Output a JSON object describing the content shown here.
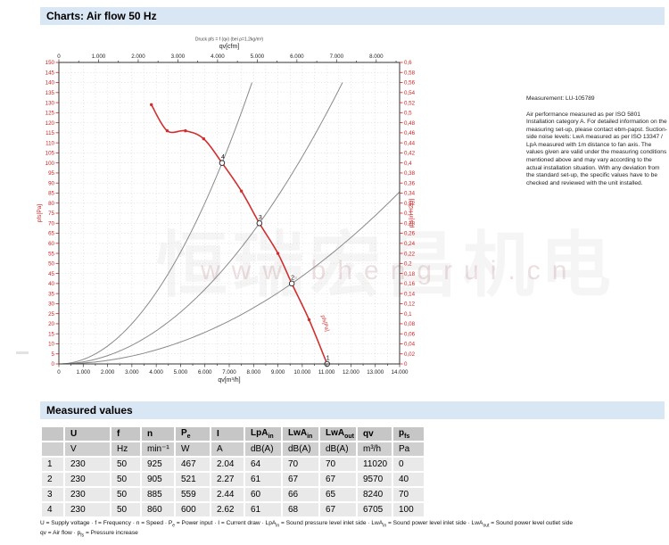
{
  "header": {
    "title": "Charts: Air flow 50 Hz"
  },
  "watermark": {
    "line1": "恒瑞宏昌机电",
    "line2": "www.bhengrui.cn"
  },
  "measurement_note": {
    "title": "Measurement: LU-105789",
    "body": "Air performance measured as per ISO 5801 Installation category A. For detailed information on the measuring set-up, please contact ebm-papst. Suction-side noise levels: LwA measured as per ISO 13347 / LpA measured with 1m distance to fan axis. The values given are valid under the measuring conditions mentioned above and may vary according to the actual installation situation. With any deviation from the standard set-up, the specific values have to be checked and reviewed with the unit installed."
  },
  "chart_data": {
    "type": "line",
    "note": "Druck pfs = f (qv) (bei ρ=1.2kg/m³)",
    "top_axis": {
      "label": "qv[cfm]",
      "max": 8000,
      "tick_step": 500,
      "label_step": 1000,
      "m3h_per_cfm": 1.63
    },
    "bottom_axis": {
      "label": "qv[m³/h]",
      "min": 0,
      "max": 14000,
      "tick_step": 500,
      "label_step": 1000
    },
    "left_axis": {
      "label": "pfs[Pa]",
      "min": 0,
      "max": 150,
      "step": 5,
      "color": "#cc2222"
    },
    "right_axis": {
      "label": "pfs[in H2O]",
      "min": 0,
      "max": 0.6,
      "step": 0.02,
      "color": "#cc2222"
    },
    "grid": {
      "color": "#cccccc",
      "x_step": 500,
      "y_step": 5
    },
    "fan_curve": {
      "name": "pfs[Pa]",
      "color": "#d03030",
      "points": [
        [
          3800,
          129
        ],
        [
          4450,
          116
        ],
        [
          5200,
          116
        ],
        [
          5950,
          112
        ],
        [
          6705,
          100
        ],
        [
          7500,
          86
        ],
        [
          8240,
          70
        ],
        [
          9000,
          55
        ],
        [
          9570,
          40
        ],
        [
          10280,
          22
        ],
        [
          11020,
          0
        ]
      ],
      "dot_points": [
        [
          3800,
          129
        ],
        [
          4450,
          116
        ],
        [
          5200,
          116
        ],
        [
          5950,
          112
        ],
        [
          7500,
          86
        ],
        [
          9000,
          55
        ],
        [
          10280,
          22
        ]
      ]
    },
    "operating_points": [
      {
        "id": "1",
        "qv": 11020,
        "pfs": 0
      },
      {
        "id": "2",
        "qv": 9570,
        "pfs": 40
      },
      {
        "id": "3",
        "qv": 8240,
        "pfs": 70
      },
      {
        "id": "4",
        "qv": 6705,
        "pfs": 100
      }
    ],
    "system_curves": {
      "color": "#8a8a8a",
      "cap_pfs": 140,
      "through": [
        [
          6705,
          100
        ],
        [
          8240,
          70
        ],
        [
          9570,
          40
        ]
      ]
    }
  },
  "measured_values": {
    "heading": "Measured values",
    "columns": [
      {
        "t": ""
      },
      {
        "t": "U"
      },
      {
        "t": "f"
      },
      {
        "t": "n"
      },
      {
        "t": "P",
        "sub": "e"
      },
      {
        "t": "I"
      },
      {
        "t": "LpA",
        "sub": "in"
      },
      {
        "t": "LwA",
        "sub": "in"
      },
      {
        "t": "LwA",
        "sub": "out"
      },
      {
        "t": "qv"
      },
      {
        "t": "p",
        "sub": "fs"
      }
    ],
    "units": [
      "",
      "V",
      "Hz",
      "min⁻¹",
      "W",
      "A",
      "dB(A)",
      "dB(A)",
      "dB(A)",
      "m³/h",
      "Pa"
    ],
    "rows": [
      [
        "1",
        "230",
        "50",
        "925",
        "467",
        "2.04",
        "64",
        "70",
        "70",
        "11020",
        "0"
      ],
      [
        "2",
        "230",
        "50",
        "905",
        "521",
        "2.27",
        "61",
        "67",
        "67",
        "9570",
        "40"
      ],
      [
        "3",
        "230",
        "50",
        "885",
        "559",
        "2.44",
        "60",
        "66",
        "65",
        "8240",
        "70"
      ],
      [
        "4",
        "230",
        "50",
        "860",
        "600",
        "2.62",
        "61",
        "68",
        "67",
        "6705",
        "100"
      ]
    ]
  },
  "footnote": {
    "line1": [
      {
        "t": "U = Supply voltage · f = Frequency · n = Speed · P"
      },
      {
        "sub": "e"
      },
      {
        "t": " = Power input · I = Current draw · LpA"
      },
      {
        "sub": "in"
      },
      {
        "t": " = Sound pressure level inlet side · LwA"
      },
      {
        "sub": "in"
      },
      {
        "t": " = Sound power level inlet side · LwA"
      },
      {
        "sub": "out"
      },
      {
        "t": " = Sound power level outlet side"
      }
    ],
    "line2": [
      {
        "t": "qv = Air flow · p"
      },
      {
        "sub": "fs"
      },
      {
        "t": " = Pressure increase"
      }
    ]
  }
}
